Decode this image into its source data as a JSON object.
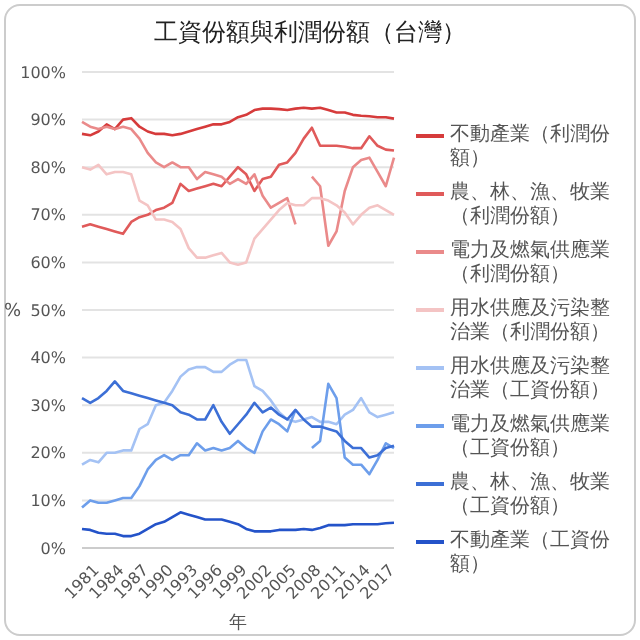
{
  "chart_data": {
    "type": "line",
    "title": "工資份額與利潤份額（台灣）",
    "xlabel": "年",
    "ylabel": "%",
    "categories": [
      "1981",
      null,
      null,
      "1984",
      null,
      null,
      "1987",
      null,
      null,
      "1990",
      null,
      null,
      "1993",
      null,
      null,
      "1996",
      null,
      null,
      "1999",
      null,
      null,
      "2002",
      null,
      null,
      "2005",
      null,
      null,
      "2008",
      null,
      null,
      "2011",
      null,
      null,
      "2014",
      null,
      null,
      "2017",
      null,
      null
    ],
    "ylim": [
      0,
      100
    ],
    "yticks": [
      {
        "value": 0,
        "label": "0%"
      },
      {
        "value": 10,
        "label": "10%"
      },
      {
        "value": 20,
        "label": "20%"
      },
      {
        "value": 30,
        "label": "30%"
      },
      {
        "value": 40,
        "label": "40%"
      },
      {
        "value": 50,
        "label": "50%"
      },
      {
        "value": 60,
        "label": "60%"
      },
      {
        "value": 70,
        "label": "70%"
      },
      {
        "value": 80,
        "label": "80%"
      },
      {
        "value": 90,
        "label": "90%"
      },
      {
        "value": 100,
        "label": "100%"
      }
    ],
    "grid": "y",
    "legend": "right",
    "series": [
      {
        "name": "不動產業（利潤份額）",
        "color": "#d63b3b",
        "values": [
          87,
          86.7,
          87.5,
          89,
          88,
          90,
          90.3,
          88.5,
          87.5,
          87,
          87,
          86.7,
          87,
          87.5,
          88,
          88.5,
          89,
          89,
          89.5,
          90.5,
          91,
          92,
          92.3,
          92.3,
          92.2,
          92,
          92.3,
          92.5,
          92.3,
          92.5,
          92,
          91.5,
          91.5,
          91,
          90.8,
          90.7,
          90.5,
          90.5,
          90.2
        ]
      },
      {
        "name": "農、林、漁、牧業（利潤份額）",
        "color": "#e05a5a",
        "values": [
          67.5,
          68,
          67.5,
          67,
          66.5,
          66,
          68.5,
          69.5,
          70,
          71,
          71.5,
          72.5,
          76.5,
          75,
          75.5,
          76,
          76.5,
          76,
          78,
          80,
          78.5,
          75,
          77.5,
          78,
          80.5,
          81,
          83,
          86,
          88.3,
          84.5,
          84.5,
          84.5,
          84.3,
          84,
          84,
          86.5,
          84.5,
          83.7,
          83.5
        ]
      },
      {
        "name": "電力及燃氣供應業（利潤份額）",
        "color": "#ea8a8a",
        "values": [
          89.5,
          88.5,
          88,
          88.5,
          88,
          88.5,
          88,
          86,
          83,
          81,
          80,
          81,
          80,
          80,
          77.5,
          79,
          78.5,
          78,
          76.5,
          77.5,
          76.5,
          78.5,
          74,
          71.5,
          72.5,
          73.5,
          68,
          null,
          78,
          76,
          63.5,
          66.5,
          75,
          80,
          81.5,
          82,
          79,
          76,
          82
        ]
      },
      {
        "name": "用水供應及污染整治業（利潤份額）",
        "color": "#f4c4c4",
        "values": [
          80,
          79.5,
          80.5,
          78.5,
          79,
          79,
          78.5,
          73,
          72,
          69,
          69,
          68.5,
          67,
          63,
          61,
          61,
          61.5,
          62,
          60,
          59.5,
          60,
          65,
          67,
          69,
          71,
          72.5,
          72,
          72,
          73.5,
          73.5,
          73,
          72,
          70.5,
          68,
          70,
          71.5,
          72,
          71,
          70
        ]
      },
      {
        "name": "用水供應及污染整治業（工資份額）",
        "color": "#a4c2f4",
        "values": [
          17.5,
          18.5,
          18,
          20,
          20,
          20.5,
          20.5,
          25,
          26,
          30,
          30.5,
          33,
          36,
          37.5,
          38,
          38,
          37,
          37,
          38.5,
          39.5,
          39.5,
          34,
          33,
          31,
          28.5,
          27,
          26.5,
          27,
          27.5,
          26.5,
          26.5,
          26,
          28,
          29,
          31.5,
          28.5,
          27.5,
          28,
          28.5
        ]
      },
      {
        "name": "電力及燃氣供應業（工資份額）",
        "color": "#6d9eeb",
        "values": [
          8.5,
          10,
          9.5,
          9.5,
          10,
          10.5,
          10.5,
          13,
          16.5,
          18.5,
          19.5,
          18.5,
          19.5,
          19.5,
          22,
          20.5,
          21,
          20.5,
          21,
          22.5,
          21,
          20,
          24.5,
          27,
          26,
          24.5,
          29,
          null,
          21,
          22.5,
          34.5,
          31.5,
          19,
          17.5,
          17.5,
          15.5,
          18.5,
          22,
          21
        ]
      },
      {
        "name": "農、林、漁、牧業（工資份額）",
        "color": "#3c6fd6",
        "values": [
          31.5,
          30.5,
          31.5,
          33,
          35,
          33,
          32.5,
          32,
          31.5,
          31,
          30.5,
          30,
          28.5,
          28,
          27,
          27,
          30,
          26.5,
          24,
          26,
          28,
          30.5,
          28.5,
          29.5,
          28,
          27,
          29,
          27,
          25.5,
          25.5,
          25,
          24.5,
          22.5,
          21,
          21,
          19,
          19.5,
          21,
          21.5
        ]
      },
      {
        "name": "不動產業（工資份額）",
        "color": "#2453c9",
        "values": [
          4,
          3.8,
          3.2,
          3,
          3,
          2.5,
          2.5,
          3,
          4,
          5,
          5.5,
          6.5,
          7.5,
          7,
          6.5,
          6,
          6,
          6,
          5.5,
          5,
          4,
          3.5,
          3.5,
          3.5,
          3.8,
          3.8,
          3.8,
          4,
          3.8,
          4.2,
          4.8,
          4.8,
          4.8,
          5,
          5,
          5,
          5,
          5.2,
          5.3
        ]
      }
    ]
  }
}
